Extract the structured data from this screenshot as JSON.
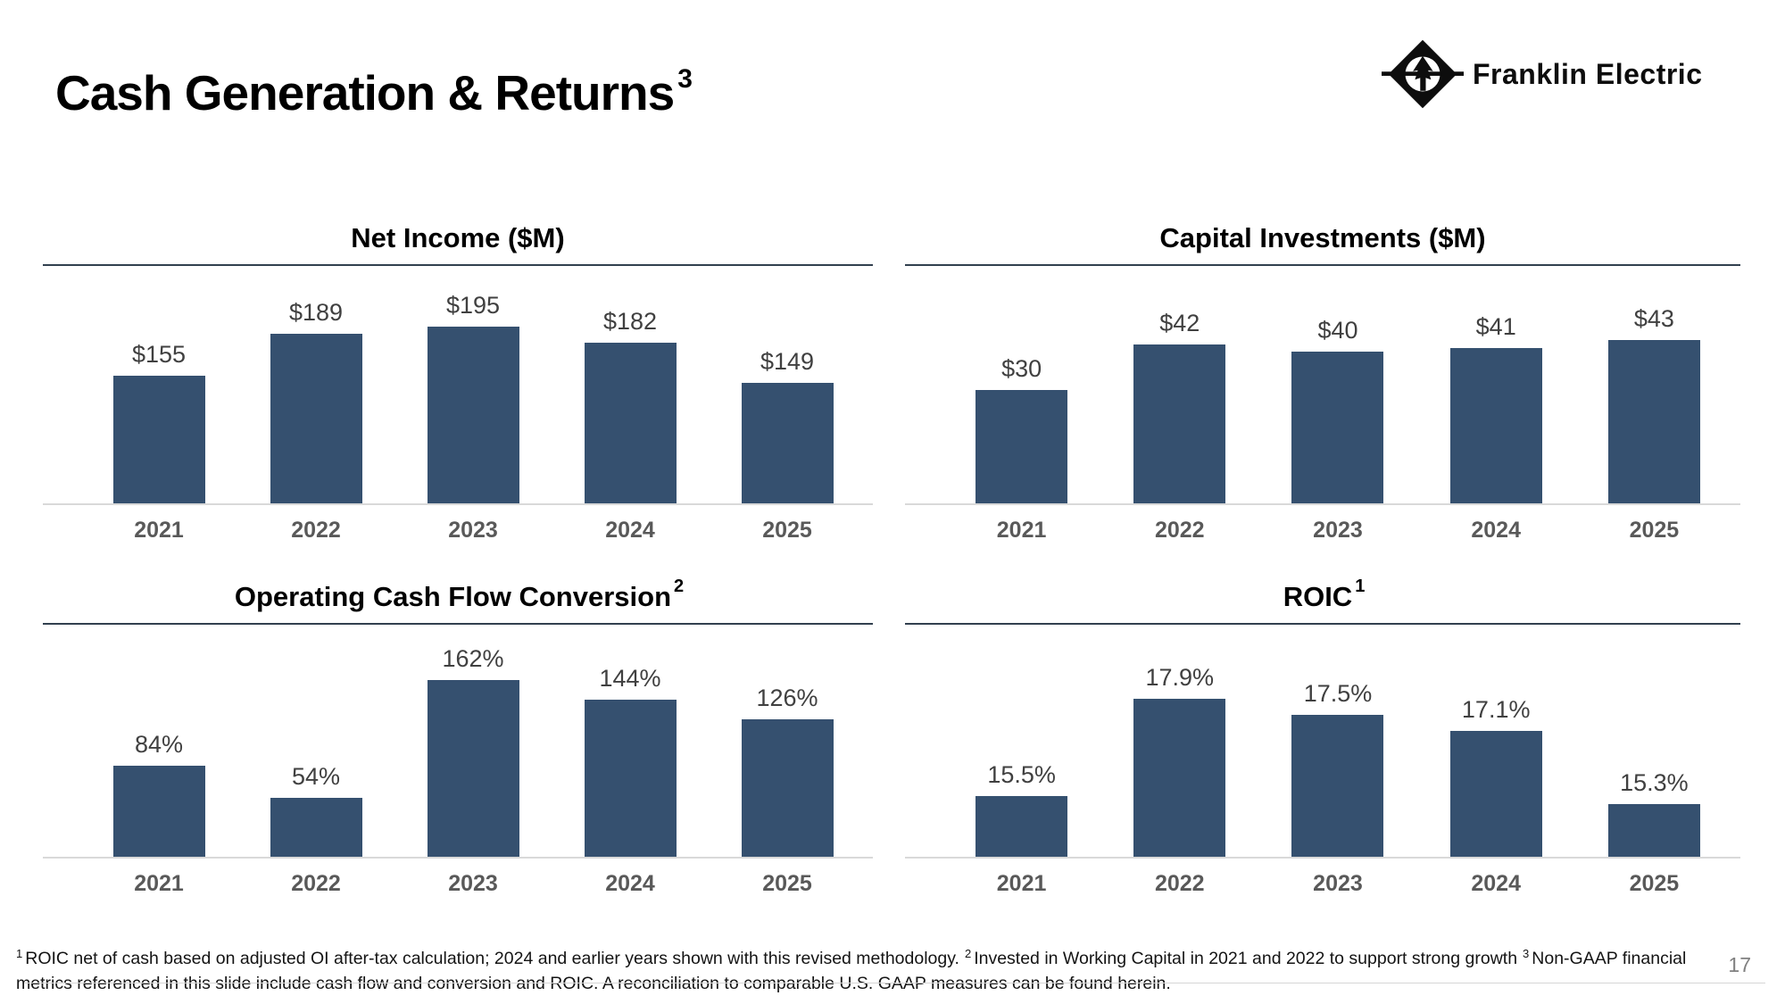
{
  "slide": {
    "title": "Cash Generation & Returns",
    "title_sup": "3",
    "page_number": "17"
  },
  "logo": {
    "text": "Franklin Electric"
  },
  "colors": {
    "bar": "#35506F",
    "title_rule": "#32404F",
    "baseline": "#D9D9D9",
    "value_label": "#404040",
    "year_label": "#595959"
  },
  "chart_data": [
    {
      "type": "bar",
      "title": "Net Income ($M)",
      "title_sup": "",
      "categories": [
        "2021",
        "2022",
        "2023",
        "2024",
        "2025"
      ],
      "values": [
        155,
        189,
        195,
        182,
        149
      ],
      "labels": [
        "$155",
        "$189",
        "$195",
        "$182",
        "$149"
      ],
      "ylim": [
        50,
        215
      ],
      "grid": false,
      "legend": "none"
    },
    {
      "type": "bar",
      "title": "Capital Investments ($M)",
      "title_sup": "",
      "categories": [
        "2021",
        "2022",
        "2023",
        "2024",
        "2025"
      ],
      "values": [
        30,
        42,
        40,
        41,
        43
      ],
      "labels": [
        "$30",
        "$42",
        "$40",
        "$41",
        "$43"
      ],
      "ylim": [
        0,
        53
      ],
      "grid": false,
      "legend": "none"
    },
    {
      "type": "bar",
      "title": "Operating Cash Flow Conversion",
      "title_sup": "2",
      "categories": [
        "2021",
        "2022",
        "2023",
        "2024",
        "2025"
      ],
      "values": [
        84,
        54,
        162,
        144,
        126
      ],
      "labels": [
        "84%",
        "54%",
        "162%",
        "144%",
        "126%"
      ],
      "ylim": [
        0,
        205
      ],
      "grid": false,
      "legend": "none"
    },
    {
      "type": "bar",
      "title": "ROIC",
      "title_sup": "1",
      "categories": [
        "2021",
        "2022",
        "2023",
        "2024",
        "2025"
      ],
      "values": [
        15.5,
        17.9,
        17.5,
        17.1,
        15.3
      ],
      "labels": [
        "15.5%",
        "17.9%",
        "17.5%",
        "17.1%",
        "15.3%"
      ],
      "ylim": [
        14,
        19.5
      ],
      "grid": false,
      "legend": "none"
    }
  ],
  "footnote": {
    "segments": [
      {
        "sup": "1",
        "text": "ROIC net of cash based on adjusted OI after-tax calculation; 2024 and earlier years shown with this revised methodology."
      },
      {
        "sup": "2",
        "text": "Invested in Working Capital in 2021 and 2022 to support strong growth"
      },
      {
        "sup": "3",
        "text": "Non-GAAP financial metrics referenced in this slide include cash flow and conversion and ROIC. A reconciliation to comparable U.S. GAAP measures can be found herein."
      }
    ]
  }
}
